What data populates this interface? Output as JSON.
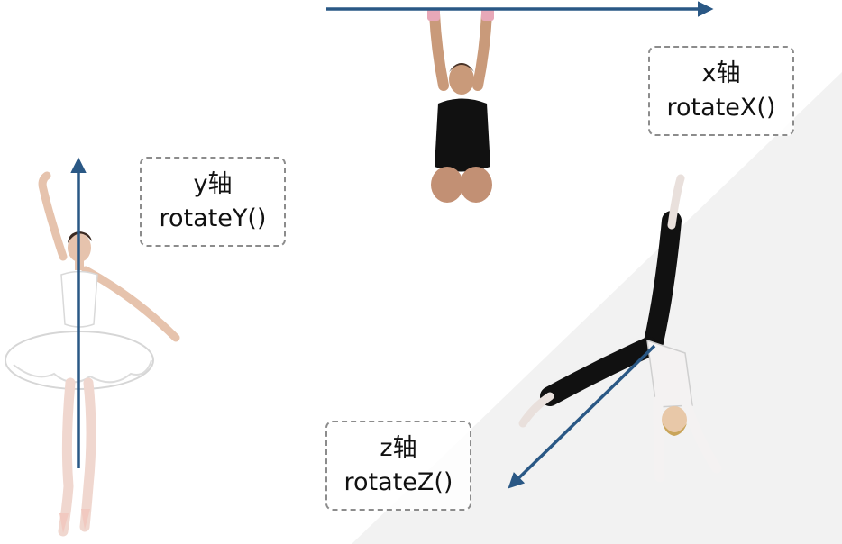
{
  "axes": [
    {
      "id": "y",
      "axis_label": "y轴",
      "method_label": "rotateY()"
    },
    {
      "id": "x",
      "axis_label": "x轴",
      "method_label": "rotateX()"
    },
    {
      "id": "z",
      "axis_label": "z轴",
      "method_label": "rotateZ()"
    }
  ],
  "figures": {
    "ballerina": "ballerina-figure",
    "bar_hanger": "gymnast-hanging-from-bar",
    "cartwheeler": "gymnast-cartwheel"
  },
  "colors": {
    "arrow": "#2a5885",
    "box_border": "#8c8c8c",
    "text": "#111111",
    "background_wedge": "#f2f2f2"
  }
}
